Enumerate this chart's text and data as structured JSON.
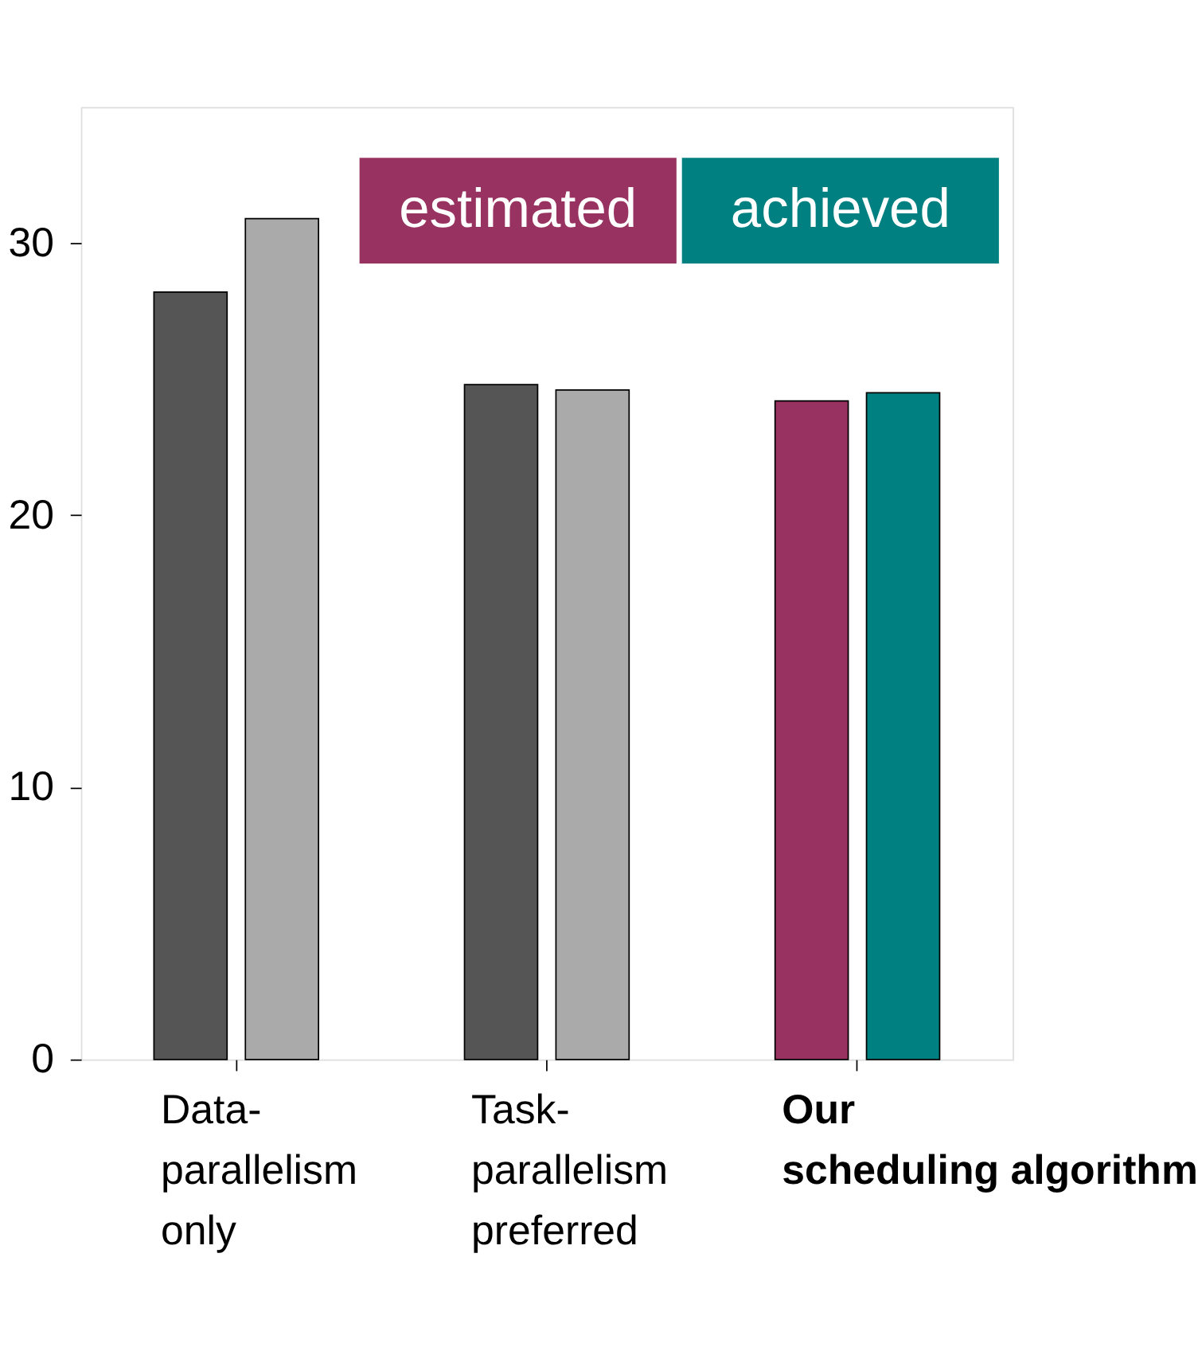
{
  "chart_data": {
    "type": "bar",
    "categories": [
      "Data-parallelism only",
      "Task-parallelism preferred",
      "Our scheduling algorithm"
    ],
    "series": [
      {
        "name": "estimated",
        "color": "#983361",
        "colors": [
          "#555555",
          "#555555",
          "#983361"
        ],
        "values": [
          28.2,
          24.8,
          24.2
        ]
      },
      {
        "name": "achieved",
        "color": "#008080",
        "colors": [
          "#aaaaaa",
          "#aaaaaa",
          "#008080"
        ],
        "values": [
          30.9,
          24.6,
          24.5
        ]
      }
    ],
    "ylim": [
      0,
      35
    ],
    "yticks": [
      0,
      10,
      20,
      30
    ],
    "grid": false,
    "legend": "top right"
  }
}
